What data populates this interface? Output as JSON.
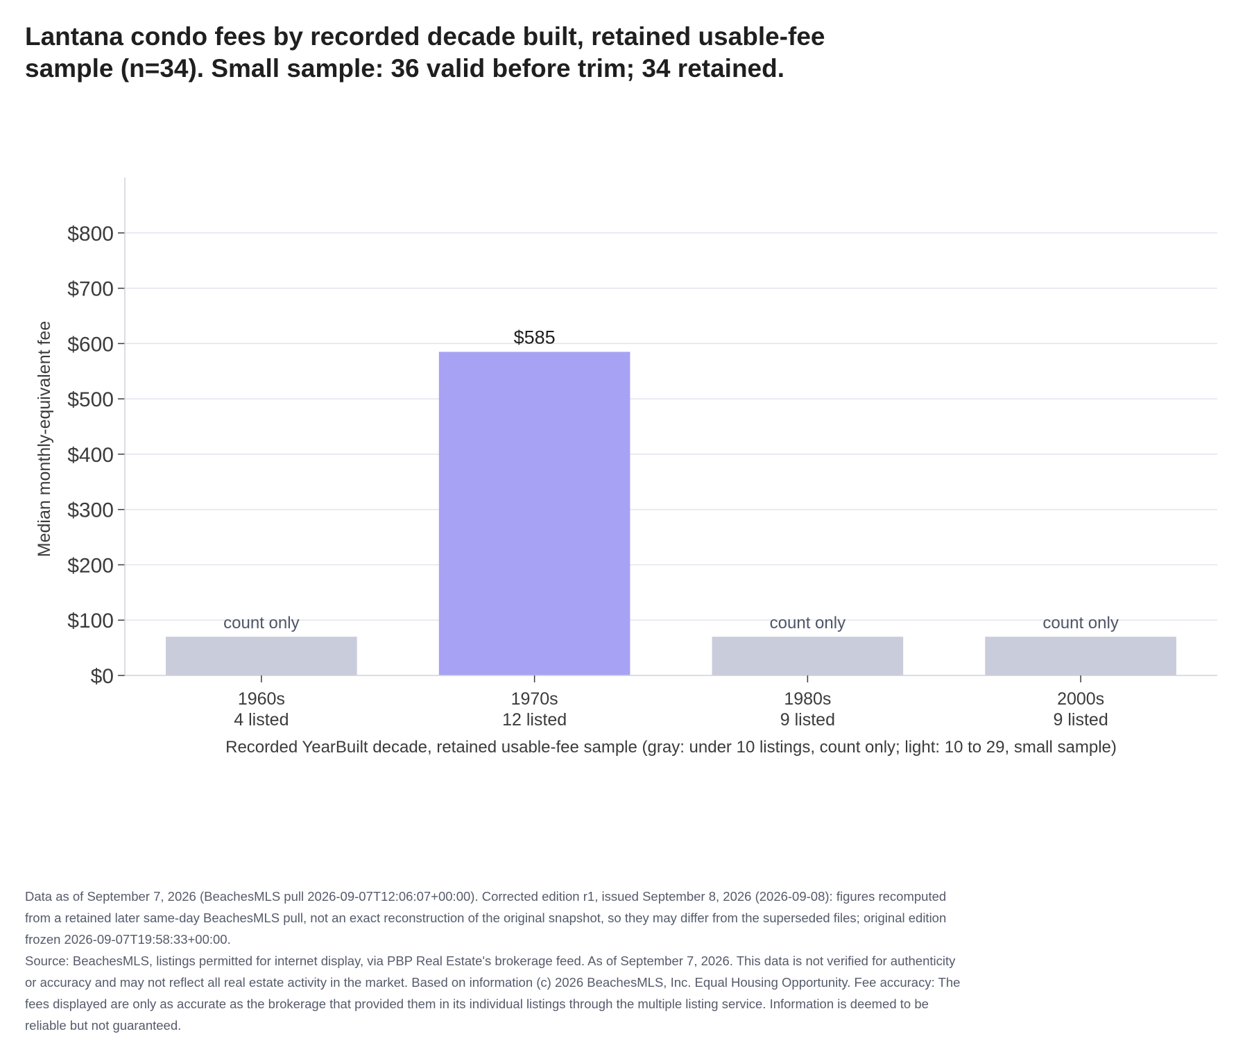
{
  "chart_data": {
    "type": "bar",
    "title": "Lantana condo fees by recorded decade built, retained usable-fee sample (n=34). Small sample: 36 valid before trim; 34 retained.",
    "xlabel": "Recorded YearBuilt decade, retained usable-fee sample (gray: under 10 listings, count only; light: 10 to 29, small sample)",
    "ylabel": "Median monthly-equivalent fee",
    "ylim": [
      0,
      850
    ],
    "yticks": [
      0,
      100,
      200,
      300,
      400,
      500,
      600,
      700,
      800
    ],
    "ytick_labels": [
      "$0",
      "$100",
      "$200",
      "$300",
      "$400",
      "$500",
      "$600",
      "$700",
      "$800"
    ],
    "grid": true,
    "legend": "none",
    "categories": [
      "1960s",
      "1970s",
      "1980s",
      "2000s"
    ],
    "counts": [
      "4 listed",
      "12 listed",
      "9 listed",
      "9 listed"
    ],
    "values": [
      null,
      585,
      null,
      null
    ],
    "placeholder_value": 70,
    "bar_labels": [
      "count only",
      "$585",
      "count only",
      "count only"
    ],
    "bar_status": [
      "count-only",
      "small-sample",
      "count-only",
      "count-only"
    ],
    "colors": {
      "count-only": "#c9ccdb",
      "small-sample": "#a7a2f3",
      "grid": "#e3e3ef",
      "axis": "#cfd0dc",
      "text": "#3b3b3b",
      "muted_label": "#4f5568"
    }
  },
  "footnotes": {
    "data_note": "Data as of September 7, 2026 (BeachesMLS pull 2026-09-07T12:06:07+00:00). Corrected edition r1, issued September 8, 2026 (2026-09-08): figures recomputed from a retained later same-day BeachesMLS pull, not an exact reconstruction of the original snapshot, so they may differ from the superseded files; original edition frozen 2026-09-07T19:58:33+00:00.",
    "source_note": "Source: BeachesMLS, listings permitted for internet display, via PBP Real Estate's brokerage feed. As of September 7, 2026. This data is not verified for authenticity or accuracy and may not reflect all real estate activity in the market. Based on information (c) 2026 BeachesMLS, Inc. Equal Housing Opportunity. Fee accuracy: The fees displayed are only as accurate as the brokerage that provided them in its individual listings through the multiple listing service. Information is deemed to be reliable but not guaranteed."
  }
}
